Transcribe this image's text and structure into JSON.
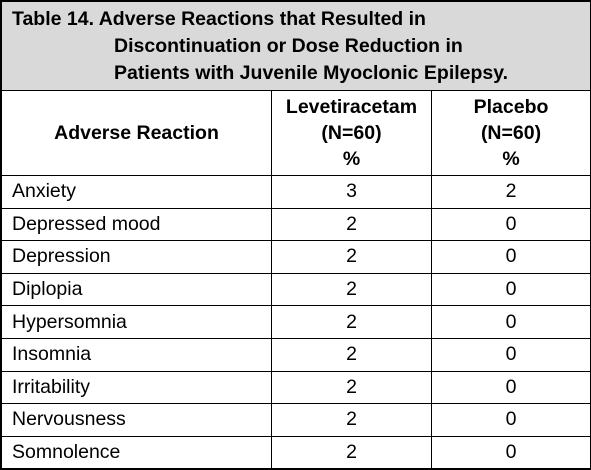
{
  "table": {
    "caption_line1": "Table 14. Adverse Reactions that Resulted in",
    "caption_line2": "Discontinuation or Dose Reduction in",
    "caption_line3": "Patients with Juvenile Myoclonic Epilepsy.",
    "headers": {
      "reaction": "Adverse Reaction",
      "levetiracetam": {
        "line1": "Levetiracetam",
        "line2": "(N=60)",
        "line3": "%"
      },
      "placebo": {
        "line1": "Placebo",
        "line2": "(N=60)",
        "line3": "%"
      }
    },
    "rows": [
      {
        "reaction": "Anxiety",
        "levetiracetam": "3",
        "placebo": "2"
      },
      {
        "reaction": "Depressed mood",
        "levetiracetam": "2",
        "placebo": "0"
      },
      {
        "reaction": "Depression",
        "levetiracetam": "2",
        "placebo": "0"
      },
      {
        "reaction": "Diplopia",
        "levetiracetam": "2",
        "placebo": "0"
      },
      {
        "reaction": "Hypersomnia",
        "levetiracetam": "2",
        "placebo": "0"
      },
      {
        "reaction": "Insomnia",
        "levetiracetam": "2",
        "placebo": "0"
      },
      {
        "reaction": "Irritability",
        "levetiracetam": "2",
        "placebo": "0"
      },
      {
        "reaction": "Nervousness",
        "levetiracetam": "2",
        "placebo": "0"
      },
      {
        "reaction": "Somnolence",
        "levetiracetam": "2",
        "placebo": "0"
      }
    ]
  }
}
